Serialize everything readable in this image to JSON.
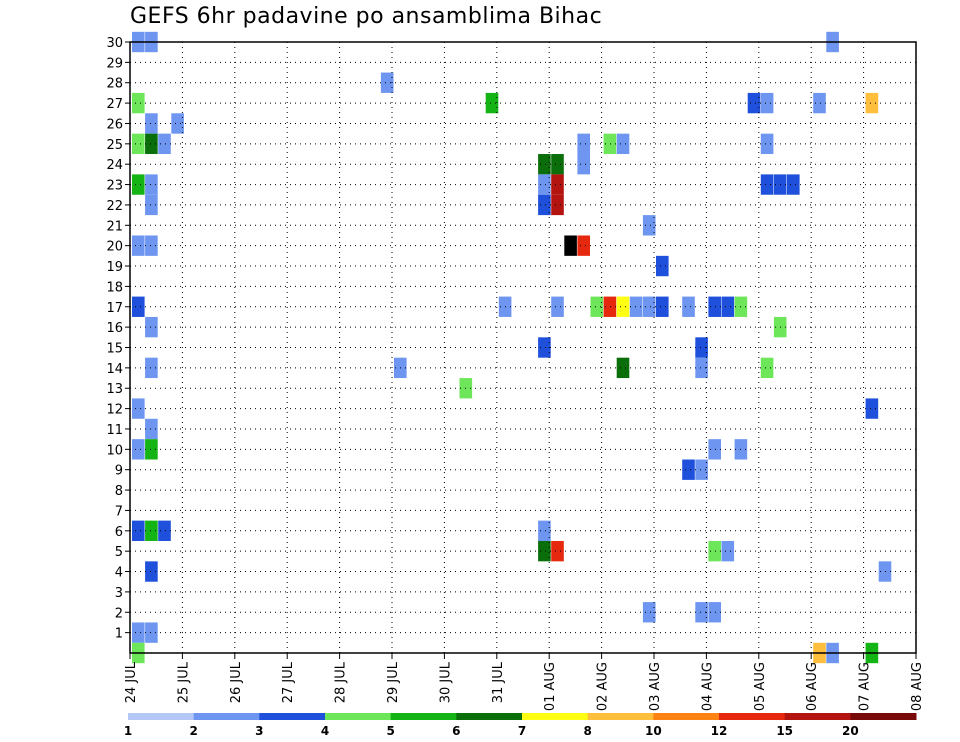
{
  "chart_data": {
    "type": "heatmap",
    "title": "GEFS 6hr padavine po ansamblima Bihac",
    "xlabel": "",
    "ylabel": "",
    "ylim": [
      0,
      30
    ],
    "xlim": [
      0,
      60
    ],
    "grid": true,
    "y_ticks": [
      1,
      2,
      3,
      4,
      5,
      6,
      7,
      8,
      9,
      10,
      11,
      12,
      13,
      14,
      15,
      16,
      17,
      18,
      19,
      20,
      21,
      22,
      23,
      24,
      25,
      26,
      27,
      28,
      29,
      30
    ],
    "x_ticks": [
      {
        "x": 0,
        "label": "24 JUL"
      },
      {
        "x": 4,
        "label": "25 JUL"
      },
      {
        "x": 8,
        "label": "26 JUL"
      },
      {
        "x": 12,
        "label": "27 JUL"
      },
      {
        "x": 16,
        "label": "28 JUL"
      },
      {
        "x": 20,
        "label": "29 JUL"
      },
      {
        "x": 24,
        "label": "30 JUL"
      },
      {
        "x": 28,
        "label": "31 JUL"
      },
      {
        "x": 32,
        "label": "01 AUG"
      },
      {
        "x": 36,
        "label": "02 AUG"
      },
      {
        "x": 40,
        "label": "03 AUG"
      },
      {
        "x": 44,
        "label": "04 AUG"
      },
      {
        "x": 48,
        "label": "05 AUG"
      },
      {
        "x": 52,
        "label": "06 AUG"
      },
      {
        "x": 56,
        "label": "07 AUG"
      },
      {
        "x": 60,
        "label": "08 AUG"
      }
    ],
    "colorbar": {
      "labels": [
        "1",
        "2",
        "3",
        "4",
        "5",
        "6",
        "7",
        "8",
        "10",
        "12",
        "15",
        "20"
      ],
      "colors": [
        "#b4c8f5",
        "#6e96f0",
        "#1e50dc",
        "#6ee65a",
        "#14b414",
        "#0a6e0a",
        "#ffff14",
        "#ffbe3c",
        "#ff8214",
        "#e6280f",
        "#b4140f",
        "#780a0a"
      ]
    },
    "values": [
      [
        0,
        30,
        1
      ],
      [
        1,
        30,
        1
      ],
      [
        53,
        30,
        1
      ],
      [
        19,
        28,
        1
      ],
      [
        0,
        27,
        3
      ],
      [
        27,
        27,
        4
      ],
      [
        47,
        27,
        2
      ],
      [
        48,
        27,
        1
      ],
      [
        52,
        27,
        1
      ],
      [
        56,
        27,
        7
      ],
      [
        1,
        26,
        1
      ],
      [
        3,
        26,
        1
      ],
      [
        0,
        25,
        3
      ],
      [
        1,
        25,
        5
      ],
      [
        2,
        25,
        1
      ],
      [
        34,
        25,
        1
      ],
      [
        36,
        25,
        3
      ],
      [
        37,
        25,
        1
      ],
      [
        48,
        25,
        1
      ],
      [
        60,
        25,
        3
      ],
      [
        31,
        24,
        5
      ],
      [
        32,
        24,
        5
      ],
      [
        34,
        24,
        1
      ],
      [
        0,
        23,
        4
      ],
      [
        1,
        23,
        1
      ],
      [
        31,
        23,
        1
      ],
      [
        32,
        23,
        10
      ],
      [
        48,
        23,
        2
      ],
      [
        49,
        23,
        2
      ],
      [
        50,
        23,
        2
      ],
      [
        1,
        22,
        1
      ],
      [
        31,
        22,
        2
      ],
      [
        32,
        22,
        10
      ],
      [
        39,
        21,
        1
      ],
      [
        0,
        20,
        1
      ],
      [
        1,
        20,
        1
      ],
      [
        33,
        20,
        15
      ],
      [
        34,
        20,
        9
      ],
      [
        60,
        20,
        1
      ],
      [
        40,
        19,
        2
      ],
      [
        0,
        17,
        2
      ],
      [
        28,
        17,
        1
      ],
      [
        32,
        17,
        1
      ],
      [
        35,
        17,
        3
      ],
      [
        36,
        17,
        9
      ],
      [
        37,
        17,
        6
      ],
      [
        38,
        17,
        1
      ],
      [
        39,
        17,
        1
      ],
      [
        40,
        17,
        2
      ],
      [
        42,
        17,
        1
      ],
      [
        44,
        17,
        2
      ],
      [
        45,
        17,
        2
      ],
      [
        46,
        17,
        3
      ],
      [
        1,
        16,
        1
      ],
      [
        49,
        16,
        3
      ],
      [
        31,
        15,
        2
      ],
      [
        43,
        15,
        2
      ],
      [
        1,
        14,
        1
      ],
      [
        20,
        14,
        1
      ],
      [
        37,
        14,
        5
      ],
      [
        43,
        14,
        1
      ],
      [
        48,
        14,
        3
      ],
      [
        25,
        13,
        3
      ],
      [
        0,
        12,
        1
      ],
      [
        56,
        12,
        2
      ],
      [
        1,
        11,
        1
      ],
      [
        0,
        10,
        1
      ],
      [
        1,
        10,
        4
      ],
      [
        44,
        10,
        1
      ],
      [
        46,
        10,
        1
      ],
      [
        42,
        9,
        2
      ],
      [
        43,
        9,
        1
      ],
      [
        0,
        6,
        2
      ],
      [
        1,
        6,
        4
      ],
      [
        2,
        6,
        2
      ],
      [
        31,
        6,
        1
      ],
      [
        31,
        5,
        5
      ],
      [
        32,
        5,
        9
      ],
      [
        44,
        5,
        3
      ],
      [
        45,
        5,
        1
      ],
      [
        1,
        4,
        2
      ],
      [
        57,
        4,
        1
      ],
      [
        60,
        4,
        3
      ],
      [
        60,
        3,
        1
      ],
      [
        39,
        2,
        1
      ],
      [
        43,
        2,
        1
      ],
      [
        44,
        2,
        1
      ],
      [
        0,
        1,
        1
      ],
      [
        1,
        1,
        1
      ],
      [
        0,
        0,
        3
      ],
      [
        52,
        0,
        7
      ],
      [
        53,
        0,
        1
      ],
      [
        56,
        0,
        4
      ],
      [
        60,
        0,
        5
      ]
    ]
  }
}
